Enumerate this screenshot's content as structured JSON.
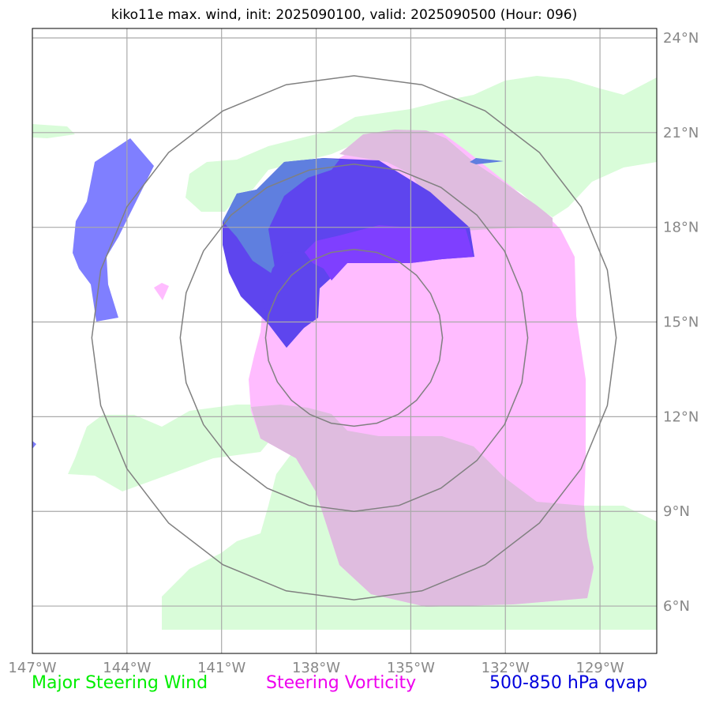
{
  "title": "kiko11e max. wind, init: 2025090100, valid: 2025090500 (Hour: 096)",
  "map": {
    "lon_range": [
      -147,
      -127.2
    ],
    "lat_range": [
      4.5,
      24.3
    ],
    "lon_ticks": [
      {
        "value": -147,
        "label": "147°W"
      },
      {
        "value": -144,
        "label": "144°W"
      },
      {
        "value": -141,
        "label": "141°W"
      },
      {
        "value": -138,
        "label": "138°W"
      },
      {
        "value": -135,
        "label": "135°W"
      },
      {
        "value": -132,
        "label": "132°W"
      },
      {
        "value": -129,
        "label": "129°W"
      }
    ],
    "lat_ticks": [
      {
        "value": 24,
        "label": "24°N"
      },
      {
        "value": 21,
        "label": "21°N"
      },
      {
        "value": 18,
        "label": "18°N"
      },
      {
        "value": 15,
        "label": "15°N"
      },
      {
        "value": 12,
        "label": "12°N"
      },
      {
        "value": 9,
        "label": "9°N"
      },
      {
        "value": 6,
        "label": "6°N"
      }
    ],
    "storm_center": {
      "lon": -136.8,
      "lat": 14.5
    },
    "range_rings_deg": [
      2.8,
      5.5,
      8.3
    ]
  },
  "legend": {
    "wind": {
      "label": "Major Steering Wind",
      "color": "#00ee00"
    },
    "vorticity": {
      "label": "Steering Vorticity",
      "color": "#ee00ee"
    },
    "qvap": {
      "label": "500-850 hPa qvap",
      "color": "#0000dd"
    }
  },
  "colors": {
    "wind_fill": "#d9fcd9",
    "vort_fill": "#ffbcff",
    "vort_overlap": "#dfbcdf",
    "qvap_fill": "#7f7fff",
    "qvap_dark": "#5e45ee",
    "qvap_mid": "#5f7fdf",
    "qvap_vort": "#7f3fff",
    "grid": "#aaaaaa",
    "ring": "#808080"
  }
}
